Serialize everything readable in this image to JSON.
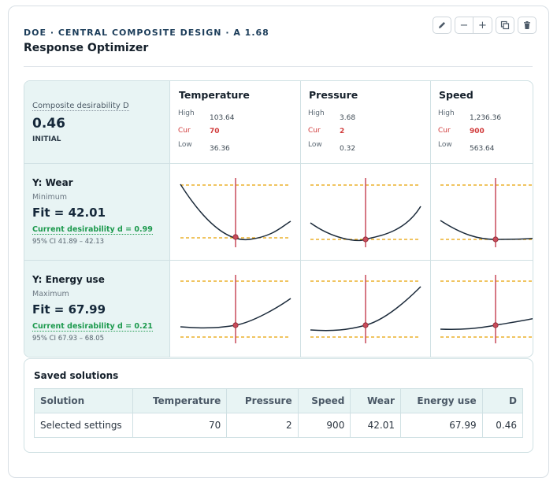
{
  "header": {
    "eyebrow": "DOE · CENTRAL COMPOSITE DESIGN · A 1.68",
    "title": "Response Optimizer"
  },
  "toolbar": {
    "icons": [
      "edit-icon",
      "zoom-out-icon",
      "zoom-in-icon",
      "duplicate-icon",
      "delete-icon"
    ],
    "minus_label": "−",
    "plus_label": "+"
  },
  "composite": {
    "label": "Composite desirability D",
    "value": "0.46",
    "state": "INITIAL"
  },
  "factor_labels": {
    "high": "High",
    "cur": "Cur",
    "low": "Low"
  },
  "factors": [
    {
      "name": "Temperature",
      "high": "103.64",
      "cur": "70",
      "low": "36.36"
    },
    {
      "name": "Pressure",
      "high": "3.68",
      "cur": "2",
      "low": "0.32"
    },
    {
      "name": "Speed",
      "high": "1,236.36",
      "cur": "900",
      "low": "563.64"
    }
  ],
  "responses": [
    {
      "name": "Y: Wear",
      "goal": "Minimum",
      "fit": "Fit = 42.01",
      "desirability": "Current desirability d = 0.99",
      "ci": "95% CI 41.89 – 42.13"
    },
    {
      "name": "Y: Energy use",
      "goal": "Maximum",
      "fit": "Fit = 67.99",
      "desirability": "Current desirability d = 0.21",
      "ci": "95% CI 67.93 – 68.05"
    }
  ],
  "colors": {
    "curve": "#1b2a3a",
    "current_line": "#c94b5a",
    "target": "#e8a000",
    "accent_green": "#1d9a4e",
    "cur_red": "#d13b3b"
  },
  "saved": {
    "title": "Saved solutions",
    "columns": [
      "Solution",
      "Temperature",
      "Pressure",
      "Speed",
      "Wear",
      "Energy use",
      "D"
    ],
    "rows": [
      [
        "Selected settings",
        "70",
        "2",
        "900",
        "42.01",
        "67.99",
        "0.46"
      ]
    ]
  }
}
